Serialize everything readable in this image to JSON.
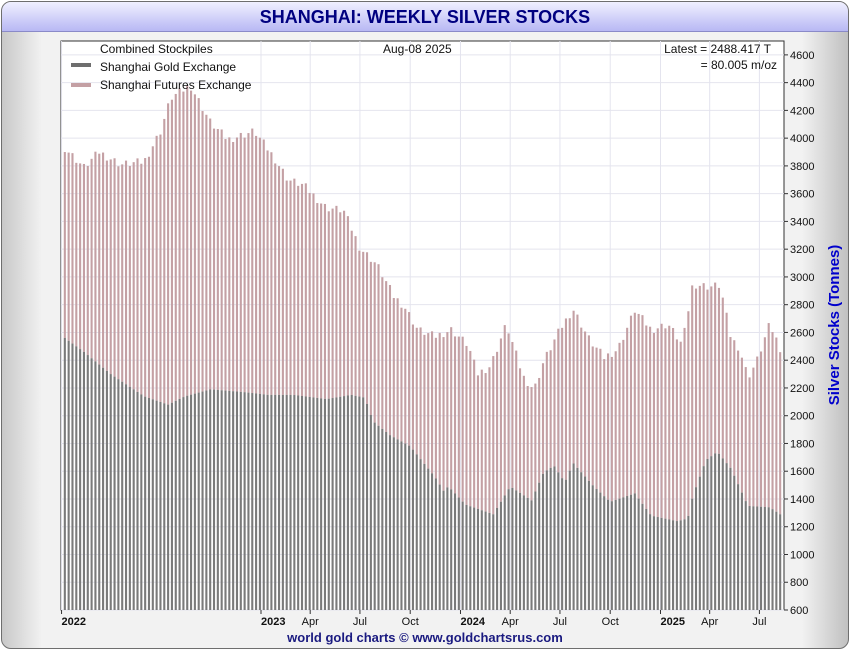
{
  "title": "SHANGHAI: WEEKLY SILVER STOCKS",
  "footer": "world gold charts © www.goldchartsrus.com",
  "legend": {
    "heading": "Combined Stockpiles",
    "sge": "Shanghai Gold Exchange",
    "shfe": "Shanghai Futures Exchange"
  },
  "date_label": "Aug-08  2025",
  "latest": {
    "line1": "Latest = 2488.417 T",
    "line2": "= 80.005 m/oz"
  },
  "colors": {
    "sge": "#7a7a7a",
    "shfe": "#c4a0a4",
    "axis_title": "#0000cc",
    "grid": "#e4e4ee"
  },
  "chart_data": {
    "type": "bar",
    "stacked": true,
    "ylabel": "Silver Stocks (Tonnes)",
    "ylim": [
      600,
      4700
    ],
    "yticks": [
      600,
      800,
      1000,
      1200,
      1400,
      1600,
      1800,
      2000,
      2200,
      2400,
      2600,
      2800,
      3000,
      3200,
      3400,
      3600,
      3800,
      4000,
      4200,
      4400,
      4600
    ],
    "x_start": "2021-12-31",
    "x_end": "2025-08-15",
    "xticks": [
      {
        "date": "2022-01-01",
        "label": "2022",
        "bold": true
      },
      {
        "date": "2023-01-01",
        "label": "2023",
        "bold": true
      },
      {
        "date": "2023-04-01",
        "label": "Apr",
        "bold": false
      },
      {
        "date": "2023-07-01",
        "label": "Jul",
        "bold": false
      },
      {
        "date": "2023-10-01",
        "label": "Oct",
        "bold": false
      },
      {
        "date": "2024-01-01",
        "label": "2024",
        "bold": true
      },
      {
        "date": "2024-04-01",
        "label": "Apr",
        "bold": false
      },
      {
        "date": "2024-07-01",
        "label": "Jul",
        "bold": false
      },
      {
        "date": "2024-10-01",
        "label": "Oct",
        "bold": false
      },
      {
        "date": "2025-01-01",
        "label": "2025",
        "bold": true
      },
      {
        "date": "2025-04-01",
        "label": "Apr",
        "bold": false
      },
      {
        "date": "2025-07-01",
        "label": "Jul",
        "bold": false
      }
    ],
    "series_anchors": [
      {
        "name": "Shanghai Gold Exchange",
        "points": [
          [
            "2022-01-07",
            2560
          ],
          [
            "2022-02-11",
            2460
          ],
          [
            "2022-04-01",
            2300
          ],
          [
            "2022-06-01",
            2140
          ],
          [
            "2022-07-15",
            2080
          ],
          [
            "2022-08-15",
            2140
          ],
          [
            "2022-10-01",
            2190
          ],
          [
            "2022-12-01",
            2170
          ],
          [
            "2023-01-15",
            2150
          ],
          [
            "2023-03-01",
            2150
          ],
          [
            "2023-05-01",
            2120
          ],
          [
            "2023-06-15",
            2150
          ],
          [
            "2023-07-10",
            2130
          ],
          [
            "2023-07-25",
            1960
          ],
          [
            "2023-08-25",
            1860
          ],
          [
            "2023-10-01",
            1780
          ],
          [
            "2023-11-15",
            1560
          ],
          [
            "2023-12-01",
            1460
          ],
          [
            "2023-12-10",
            1490
          ],
          [
            "2024-01-10",
            1360
          ],
          [
            "2024-03-01",
            1290
          ],
          [
            "2024-04-01",
            1490
          ],
          [
            "2024-05-10",
            1390
          ],
          [
            "2024-06-01",
            1590
          ],
          [
            "2024-06-20",
            1640
          ],
          [
            "2024-07-10",
            1520
          ],
          [
            "2024-07-25",
            1660
          ],
          [
            "2024-09-01",
            1490
          ],
          [
            "2024-10-01",
            1380
          ],
          [
            "2024-11-15",
            1440
          ],
          [
            "2024-12-15",
            1280
          ],
          [
            "2025-02-01",
            1240
          ],
          [
            "2025-02-20",
            1260
          ],
          [
            "2025-03-01",
            1420
          ],
          [
            "2025-03-25",
            1680
          ],
          [
            "2025-04-15",
            1740
          ],
          [
            "2025-05-10",
            1620
          ],
          [
            "2025-06-10",
            1350
          ],
          [
            "2025-07-20",
            1340
          ],
          [
            "2025-08-08",
            1290
          ]
        ]
      },
      {
        "name": "Combined Stockpiles",
        "points": [
          [
            "2022-01-07",
            3930
          ],
          [
            "2022-02-11",
            3790
          ],
          [
            "2022-03-11",
            3900
          ],
          [
            "2022-04-20",
            3810
          ],
          [
            "2022-06-01",
            3830
          ],
          [
            "2022-07-01",
            4050
          ],
          [
            "2022-07-20",
            4290
          ],
          [
            "2022-08-25",
            4380
          ],
          [
            "2022-10-01",
            4110
          ],
          [
            "2022-11-01",
            3990
          ],
          [
            "2022-12-20",
            4050
          ],
          [
            "2023-01-25",
            3860
          ],
          [
            "2023-02-20",
            3700
          ],
          [
            "2023-03-20",
            3660
          ],
          [
            "2023-04-30",
            3500
          ],
          [
            "2023-06-01",
            3480
          ],
          [
            "2023-07-01",
            3210
          ],
          [
            "2023-08-01",
            3090
          ],
          [
            "2023-09-01",
            2860
          ],
          [
            "2023-09-20",
            2790
          ],
          [
            "2023-10-15",
            2620
          ],
          [
            "2023-11-15",
            2570
          ],
          [
            "2023-12-15",
            2620
          ],
          [
            "2024-01-15",
            2510
          ],
          [
            "2024-02-01",
            2300
          ],
          [
            "2024-02-25",
            2360
          ],
          [
            "2024-03-25",
            2660
          ],
          [
            "2024-04-25",
            2280
          ],
          [
            "2024-05-15",
            2190
          ],
          [
            "2024-06-01",
            2390
          ],
          [
            "2024-07-01",
            2620
          ],
          [
            "2024-07-25",
            2770
          ],
          [
            "2024-08-25",
            2540
          ],
          [
            "2024-09-20",
            2420
          ],
          [
            "2024-10-15",
            2480
          ],
          [
            "2024-11-15",
            2760
          ],
          [
            "2024-12-15",
            2620
          ],
          [
            "2025-01-15",
            2660
          ],
          [
            "2025-02-10",
            2510
          ],
          [
            "2025-03-01",
            2950
          ],
          [
            "2025-04-01",
            2930
          ],
          [
            "2025-04-20",
            2940
          ],
          [
            "2025-05-10",
            2560
          ],
          [
            "2025-05-25",
            2490
          ],
          [
            "2025-06-10",
            2280
          ],
          [
            "2025-06-25",
            2380
          ],
          [
            "2025-07-20",
            2660
          ],
          [
            "2025-08-08",
            2488
          ]
        ]
      }
    ]
  }
}
